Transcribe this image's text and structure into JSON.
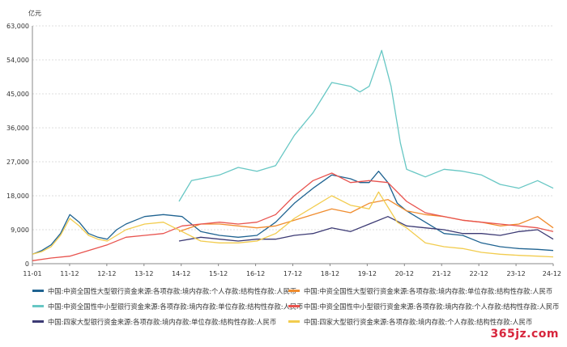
{
  "chart_data": {
    "type": "line",
    "unit_label": "亿元",
    "ylim": [
      0,
      63000
    ],
    "yticks": [
      "0",
      "9,000",
      "18,000",
      "27,000",
      "36,000",
      "45,000",
      "54,000",
      "63,000"
    ],
    "ytick_values": [
      0,
      9000,
      18000,
      27000,
      36000,
      45000,
      54000,
      63000
    ],
    "x_range": [
      "2011-01",
      "2024-12"
    ],
    "xticks": [
      "11-01",
      "11-12",
      "12-12",
      "13-12",
      "14-12",
      "15-12",
      "16-12",
      "17-12",
      "18-12",
      "19-12",
      "20-12",
      "21-12",
      "22-12",
      "23-12",
      "24-12"
    ],
    "grid": "horizontal-dashed",
    "legend_position": "bottom",
    "series": [
      {
        "name": "中国:中资全国性大型银行资金来源:各项存款:境内存款:个人存款:结构性存款:人民币",
        "color": "#1f6391",
        "points": [
          [
            "2011-01",
            2500
          ],
          [
            "2011-04",
            3500
          ],
          [
            "2011-07",
            5000
          ],
          [
            "2011-10",
            8000
          ],
          [
            "2012-01",
            13000
          ],
          [
            "2012-04",
            11000
          ],
          [
            "2012-07",
            8000
          ],
          [
            "2012-10",
            7000
          ],
          [
            "2013-01",
            6500
          ],
          [
            "2013-04",
            9000
          ],
          [
            "2013-07",
            10500
          ],
          [
            "2013-10",
            11500
          ],
          [
            "2014-01",
            12500
          ],
          [
            "2014-07",
            13000
          ],
          [
            "2015-01",
            12500
          ],
          [
            "2015-07",
            8500
          ],
          [
            "2016-01",
            7500
          ],
          [
            "2016-07",
            7000
          ],
          [
            "2017-01",
            7500
          ],
          [
            "2017-07",
            11000
          ],
          [
            "2018-01",
            16000
          ],
          [
            "2018-07",
            20000
          ],
          [
            "2019-01",
            23500
          ],
          [
            "2019-07",
            22500
          ],
          [
            "2019-10",
            21500
          ],
          [
            "2020-01",
            21500
          ],
          [
            "2020-04",
            24500
          ],
          [
            "2020-07",
            21500
          ],
          [
            "2020-10",
            16000
          ],
          [
            "2021-01",
            14000
          ],
          [
            "2021-07",
            11000
          ],
          [
            "2022-01",
            8000
          ],
          [
            "2022-07",
            7500
          ],
          [
            "2023-01",
            5500
          ],
          [
            "2023-07",
            4500
          ],
          [
            "2024-01",
            4000
          ],
          [
            "2024-07",
            3800
          ],
          [
            "2024-12",
            3500
          ]
        ]
      },
      {
        "name": "中国:中资全国性大型银行资金来源:各项存款:境内存款:单位存款:结构性存款:人民币",
        "color": "#f08c2e",
        "points": [
          [
            "2014-12",
            8500
          ],
          [
            "2015-07",
            10500
          ],
          [
            "2016-01",
            10500
          ],
          [
            "2016-07",
            10000
          ],
          [
            "2017-01",
            9500
          ],
          [
            "2017-07",
            10000
          ],
          [
            "2018-01",
            11500
          ],
          [
            "2018-07",
            13000
          ],
          [
            "2019-01",
            14500
          ],
          [
            "2019-07",
            13500
          ],
          [
            "2020-01",
            16000
          ],
          [
            "2020-07",
            17000
          ],
          [
            "2021-01",
            14000
          ],
          [
            "2021-07",
            13000
          ],
          [
            "2022-01",
            12500
          ],
          [
            "2022-07",
            11500
          ],
          [
            "2023-01",
            11000
          ],
          [
            "2023-07",
            10000
          ],
          [
            "2024-01",
            10500
          ],
          [
            "2024-07",
            12500
          ],
          [
            "2024-12",
            9500
          ]
        ]
      },
      {
        "name": "中国:中资全国性中小型银行资金来源:各项存款:境内存款:单位存款:结构性存款:人民币",
        "color": "#67c7c4",
        "points": [
          [
            "2014-12",
            16500
          ],
          [
            "2015-04",
            22000
          ],
          [
            "2016-01",
            23500
          ],
          [
            "2016-07",
            25500
          ],
          [
            "2017-01",
            24500
          ],
          [
            "2017-07",
            26000
          ],
          [
            "2018-01",
            34000
          ],
          [
            "2018-07",
            40000
          ],
          [
            "2019-01",
            48000
          ],
          [
            "2019-07",
            47000
          ],
          [
            "2019-10",
            45500
          ],
          [
            "2020-01",
            47000
          ],
          [
            "2020-05",
            56500
          ],
          [
            "2020-08",
            47000
          ],
          [
            "2020-11",
            32000
          ],
          [
            "2021-01",
            25000
          ],
          [
            "2021-07",
            23000
          ],
          [
            "2022-01",
            25000
          ],
          [
            "2022-07",
            24500
          ],
          [
            "2023-01",
            23500
          ],
          [
            "2023-07",
            21000
          ],
          [
            "2024-01",
            20000
          ],
          [
            "2024-07",
            22000
          ],
          [
            "2024-12",
            20000
          ]
        ]
      },
      {
        "name": "中国:中资全国性中小型银行资金来源:各项存款:境内存款:个人存款:结构性存款:人民币",
        "color": "#e8534e",
        "points": [
          [
            "2011-01",
            800
          ],
          [
            "2011-07",
            1500
          ],
          [
            "2012-01",
            2000
          ],
          [
            "2012-07",
            3500
          ],
          [
            "2013-01",
            5000
          ],
          [
            "2013-07",
            7000
          ],
          [
            "2014-01",
            7500
          ],
          [
            "2014-07",
            8000
          ],
          [
            "2015-01",
            10000
          ],
          [
            "2015-07",
            10500
          ],
          [
            "2016-01",
            11000
          ],
          [
            "2016-07",
            10500
          ],
          [
            "2017-01",
            11000
          ],
          [
            "2017-07",
            13000
          ],
          [
            "2018-01",
            18000
          ],
          [
            "2018-07",
            22000
          ],
          [
            "2019-01",
            24000
          ],
          [
            "2019-07",
            21500
          ],
          [
            "2020-01",
            22000
          ],
          [
            "2020-07",
            21500
          ],
          [
            "2021-01",
            16500
          ],
          [
            "2021-07",
            13500
          ],
          [
            "2022-01",
            12500
          ],
          [
            "2022-07",
            11500
          ],
          [
            "2023-01",
            11000
          ],
          [
            "2023-07",
            10500
          ],
          [
            "2024-01",
            10000
          ],
          [
            "2024-07",
            9500
          ],
          [
            "2024-12",
            8500
          ]
        ]
      },
      {
        "name": "中国:四家大型银行资金来源:各项存款:境内存款:单位存款:结构性存款:人民币",
        "color": "#3c3a74",
        "points": [
          [
            "2014-12",
            6000
          ],
          [
            "2015-07",
            7000
          ],
          [
            "2016-01",
            6500
          ],
          [
            "2016-07",
            6000
          ],
          [
            "2017-01",
            6500
          ],
          [
            "2017-07",
            6500
          ],
          [
            "2018-01",
            7500
          ],
          [
            "2018-07",
            8000
          ],
          [
            "2019-01",
            9500
          ],
          [
            "2019-07",
            8500
          ],
          [
            "2020-01",
            10500
          ],
          [
            "2020-07",
            12500
          ],
          [
            "2021-01",
            10000
          ],
          [
            "2021-07",
            9500
          ],
          [
            "2022-01",
            9000
          ],
          [
            "2022-07",
            8000
          ],
          [
            "2023-01",
            8000
          ],
          [
            "2023-07",
            7500
          ],
          [
            "2024-01",
            8500
          ],
          [
            "2024-07",
            9000
          ],
          [
            "2024-12",
            6500
          ]
        ]
      },
      {
        "name": "中国:四家大型银行资金来源:各项存款:境内存款:个人存款:结构性存款:人民币",
        "color": "#f2cc4e",
        "points": [
          [
            "2011-01",
            2500
          ],
          [
            "2011-04",
            3200
          ],
          [
            "2011-07",
            4500
          ],
          [
            "2011-10",
            7500
          ],
          [
            "2012-01",
            12000
          ],
          [
            "2012-04",
            10000
          ],
          [
            "2012-07",
            7500
          ],
          [
            "2012-10",
            6500
          ],
          [
            "2013-01",
            6000
          ],
          [
            "2013-07",
            9000
          ],
          [
            "2014-01",
            10500
          ],
          [
            "2014-07",
            11000
          ],
          [
            "2015-01",
            8500
          ],
          [
            "2015-07",
            6000
          ],
          [
            "2016-01",
            5500
          ],
          [
            "2016-07",
            5500
          ],
          [
            "2017-01",
            6000
          ],
          [
            "2017-07",
            8000
          ],
          [
            "2018-01",
            12000
          ],
          [
            "2018-07",
            15000
          ],
          [
            "2019-01",
            18000
          ],
          [
            "2019-07",
            15500
          ],
          [
            "2020-01",
            14500
          ],
          [
            "2020-04",
            19000
          ],
          [
            "2020-07",
            15000
          ],
          [
            "2020-10",
            11000
          ],
          [
            "2021-01",
            9500
          ],
          [
            "2021-07",
            5500
          ],
          [
            "2022-01",
            4500
          ],
          [
            "2022-07",
            4000
          ],
          [
            "2023-01",
            3000
          ],
          [
            "2023-07",
            2500
          ],
          [
            "2024-01",
            2200
          ],
          [
            "2024-07",
            2000
          ],
          [
            "2024-12",
            1800
          ]
        ]
      }
    ]
  },
  "watermark_text": "365jz.com"
}
